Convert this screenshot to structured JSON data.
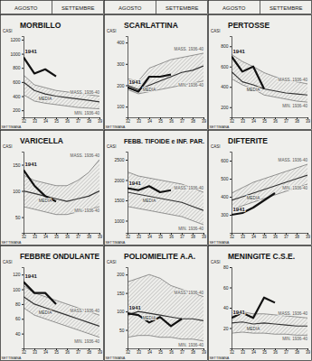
{
  "header": {
    "months": [
      "AGOSTO",
      "SETTEMBRE"
    ]
  },
  "chart_data": [
    {
      "type": "line",
      "title": "MORBILLO",
      "xlabel": "SETTIMANA",
      "ylabel": "CASI",
      "x": [
        32,
        33,
        34,
        35,
        36,
        37,
        38,
        39
      ],
      "xlim": [
        32,
        39
      ],
      "xticks": [
        32,
        33,
        34,
        35,
        36,
        37,
        38,
        39
      ],
      "ylim": [
        100,
        1250
      ],
      "yticks": [
        200,
        400,
        600,
        800,
        1000,
        1200
      ],
      "series": [
        {
          "name": "MASS. 1936-40",
          "color": "#555555",
          "values": [
            700,
            560,
            520,
            480,
            460,
            440,
            420,
            400
          ]
        },
        {
          "name": "MIN. 1936-40",
          "color": "#555555",
          "values": [
            420,
            330,
            300,
            280,
            260,
            240,
            230,
            220
          ]
        },
        {
          "name": "MEDIA",
          "color": "#333333",
          "values": [
            600,
            480,
            430,
            400,
            380,
            360,
            340,
            320
          ]
        },
        {
          "name": "1941",
          "color": "#111111",
          "values": [
            950,
            720,
            780,
            680,
            null,
            null,
            null,
            null
          ]
        }
      ]
    },
    {
      "type": "line",
      "title": "SCARLATTINA",
      "xlabel": "SETTIMANA",
      "ylabel": "CASI",
      "x": [
        32,
        33,
        34,
        35,
        36,
        37,
        38,
        39
      ],
      "xlim": [
        32,
        39
      ],
      "xticks": [
        32,
        33,
        34,
        35,
        36,
        37,
        38,
        39
      ],
      "ylim": [
        50,
        430
      ],
      "yticks": [
        100,
        200,
        300,
        400
      ],
      "series": [
        {
          "name": "MASS. 1936-40",
          "color": "#555555",
          "values": [
            230,
            220,
            280,
            300,
            320,
            330,
            340,
            350
          ]
        },
        {
          "name": "MIN. 1936-40",
          "color": "#555555",
          "values": [
            180,
            160,
            170,
            180,
            190,
            200,
            210,
            220
          ]
        },
        {
          "name": "MEDIA",
          "color": "#333333",
          "values": [
            200,
            180,
            200,
            220,
            240,
            260,
            270,
            290
          ]
        },
        {
          "name": "1941",
          "color": "#111111",
          "values": [
            190,
            170,
            240,
            240,
            250,
            null,
            null,
            null
          ]
        }
      ]
    },
    {
      "type": "line",
      "title": "PERTOSSE",
      "xlabel": "SETTIMANA",
      "ylabel": "CASI",
      "x": [
        32,
        33,
        34,
        35,
        36,
        37,
        38,
        39
      ],
      "xlim": [
        32,
        39
      ],
      "xticks": [
        32,
        33,
        34,
        35,
        36,
        37,
        38,
        39
      ],
      "ylim": [
        100,
        900
      ],
      "yticks": [
        200,
        400,
        600,
        800
      ],
      "series": [
        {
          "name": "MASS. 1936-40",
          "color": "#555555",
          "values": [
            720,
            650,
            600,
            540,
            500,
            470,
            450,
            430
          ]
        },
        {
          "name": "MIN. 1936-40",
          "color": "#555555",
          "values": [
            480,
            420,
            380,
            320,
            300,
            280,
            260,
            250
          ]
        },
        {
          "name": "MEDIA",
          "color": "#333333",
          "values": [
            550,
            450,
            420,
            380,
            360,
            340,
            330,
            320
          ]
        },
        {
          "name": "1941",
          "color": "#111111",
          "values": [
            700,
            550,
            600,
            380,
            null,
            null,
            null,
            null
          ]
        }
      ]
    },
    {
      "type": "line",
      "title": "VARICELLA",
      "xlabel": "SETTIMANA",
      "ylabel": "CASI",
      "x": [
        32,
        33,
        34,
        35,
        36,
        37,
        38,
        39
      ],
      "xlim": [
        32,
        39
      ],
      "xticks": [
        32,
        33,
        34,
        35,
        36,
        37,
        38,
        39
      ],
      "ylim": [
        20,
        175
      ],
      "yticks": [
        50,
        100,
        150
      ],
      "series": [
        {
          "name": "MASS. 1936-40",
          "color": "#555555",
          "values": [
            130,
            120,
            115,
            110,
            110,
            120,
            135,
            160
          ]
        },
        {
          "name": "MIN. 1936-40",
          "color": "#555555",
          "values": [
            70,
            65,
            60,
            55,
            55,
            60,
            65,
            70
          ]
        },
        {
          "name": "MEDIA",
          "color": "#333333",
          "values": [
            100,
            95,
            90,
            85,
            80,
            85,
            90,
            100
          ]
        },
        {
          "name": "1941",
          "color": "#111111",
          "values": [
            140,
            110,
            90,
            80,
            null,
            null,
            null,
            null
          ]
        }
      ]
    },
    {
      "type": "line",
      "title": "FEBB. TIFOIDE e INF. PAR.",
      "xlabel": "SETTIMANA",
      "ylabel": "CASI",
      "x": [
        32,
        33,
        34,
        35,
        36,
        37,
        38,
        39
      ],
      "xlim": [
        32,
        39
      ],
      "xticks": [
        32,
        33,
        34,
        35,
        36,
        37,
        38,
        39
      ],
      "ylim": [
        700,
        2700
      ],
      "yticks": [
        1000,
        1500,
        2000,
        2500
      ],
      "series": [
        {
          "name": "MASS. 1936-40",
          "color": "#555555",
          "values": [
            2200,
            2100,
            2050,
            2000,
            1950,
            1900,
            1800,
            1700
          ]
        },
        {
          "name": "MIN. 1936-40",
          "color": "#555555",
          "values": [
            1350,
            1300,
            1250,
            1200,
            1150,
            1100,
            1000,
            900
          ]
        },
        {
          "name": "MEDIA",
          "color": "#333333",
          "values": [
            1700,
            1650,
            1600,
            1550,
            1500,
            1450,
            1350,
            1250
          ]
        },
        {
          "name": "1941",
          "color": "#111111",
          "values": [
            1800,
            1750,
            1850,
            1700,
            1750,
            null,
            null,
            null
          ]
        }
      ]
    },
    {
      "type": "line",
      "title": "DIFTERITE",
      "xlabel": "SETTIMANA",
      "ylabel": "CASI",
      "x": [
        32,
        33,
        34,
        35,
        36,
        37,
        38,
        39
      ],
      "xlim": [
        32,
        39
      ],
      "xticks": [
        32,
        33,
        34,
        35,
        36,
        37,
        38,
        39
      ],
      "ylim": [
        200,
        650
      ],
      "yticks": [
        300,
        400,
        500,
        600
      ],
      "series": [
        {
          "name": "MASS. 1936-40",
          "color": "#555555",
          "values": [
            420,
            450,
            480,
            500,
            520,
            540,
            560,
            580
          ]
        },
        {
          "name": "MIN. 1936-40",
          "color": "#555555",
          "values": [
            330,
            350,
            370,
            390,
            410,
            430,
            450,
            470
          ]
        },
        {
          "name": "MEDIA",
          "color": "#333333",
          "values": [
            380,
            400,
            420,
            440,
            460,
            480,
            500,
            520
          ]
        },
        {
          "name": "1941",
          "color": "#111111",
          "values": [
            300,
            310,
            340,
            380,
            420,
            null,
            null,
            null
          ]
        }
      ]
    },
    {
      "type": "line",
      "title": "FEBBRE ONDULANTE",
      "xlabel": "SETTIMANA",
      "ylabel": "CASI",
      "x": [
        32,
        33,
        34,
        35,
        36,
        37,
        38,
        39
      ],
      "xlim": [
        32,
        39
      ],
      "xticks": [
        32,
        33,
        34,
        35,
        36,
        37,
        38,
        39
      ],
      "ylim": [
        20,
        130
      ],
      "yticks": [
        40,
        60,
        80,
        100,
        120
      ],
      "series": [
        {
          "name": "MASS. 1936-40",
          "color": "#555555",
          "values": [
            105,
            95,
            90,
            85,
            80,
            75,
            70,
            65
          ]
        },
        {
          "name": "MIN. 1936-40",
          "color": "#555555",
          "values": [
            75,
            65,
            60,
            55,
            50,
            45,
            40,
            35
          ]
        },
        {
          "name": "MEDIA",
          "color": "#333333",
          "values": [
            90,
            80,
            75,
            70,
            65,
            60,
            55,
            50
          ]
        },
        {
          "name": "1941",
          "color": "#111111",
          "values": [
            110,
            95,
            95,
            80,
            null,
            null,
            null,
            null
          ]
        }
      ]
    },
    {
      "type": "line",
      "title": "POLIOMIELITE A.A.",
      "xlabel": "SETTIMANA",
      "ylabel": "CASI",
      "x": [
        32,
        33,
        34,
        35,
        36,
        37,
        38,
        39
      ],
      "xlim": [
        32,
        39
      ],
      "xticks": [
        32,
        33,
        34,
        35,
        36,
        37,
        38,
        39
      ],
      "ylim": [
        0,
        220
      ],
      "yticks": [
        50,
        100,
        150,
        200
      ],
      "series": [
        {
          "name": "MASS. 1936-40",
          "color": "#555555",
          "values": [
            180,
            190,
            200,
            190,
            170,
            160,
            150,
            140
          ]
        },
        {
          "name": "MIN. 1936-40",
          "color": "#555555",
          "values": [
            30,
            35,
            35,
            30,
            30,
            25,
            25,
            20
          ]
        },
        {
          "name": "MEDIA",
          "color": "#333333",
          "values": [
            90,
            100,
            95,
            90,
            85,
            80,
            80,
            75
          ]
        },
        {
          "name": "1941",
          "color": "#111111",
          "values": [
            95,
            90,
            70,
            85,
            60,
            80,
            null,
            null
          ]
        }
      ]
    },
    {
      "type": "line",
      "title": "MENINGITE C.S.E.",
      "xlabel": "SETTIMANA",
      "ylabel": "CASI",
      "x": [
        32,
        33,
        34,
        35,
        36,
        37,
        38,
        39
      ],
      "xlim": [
        32,
        39
      ],
      "xticks": [
        32,
        33,
        34,
        35,
        36,
        37,
        38,
        39
      ],
      "ylim": [
        0,
        80
      ],
      "yticks": [
        20,
        40,
        60,
        80
      ],
      "series": [
        {
          "name": "MASS. 1936-40",
          "color": "#555555",
          "values": [
            35,
            36,
            34,
            34,
            33,
            32,
            31,
            30
          ]
        },
        {
          "name": "MIN. 1936-40",
          "color": "#555555",
          "values": [
            15,
            16,
            15,
            15,
            14,
            14,
            13,
            13
          ]
        },
        {
          "name": "MEDIA",
          "color": "#333333",
          "values": [
            25,
            26,
            24,
            25,
            24,
            23,
            22,
            22
          ]
        },
        {
          "name": "1941",
          "color": "#111111",
          "values": [
            30,
            35,
            30,
            50,
            45,
            null,
            null,
            null
          ]
        }
      ]
    }
  ]
}
